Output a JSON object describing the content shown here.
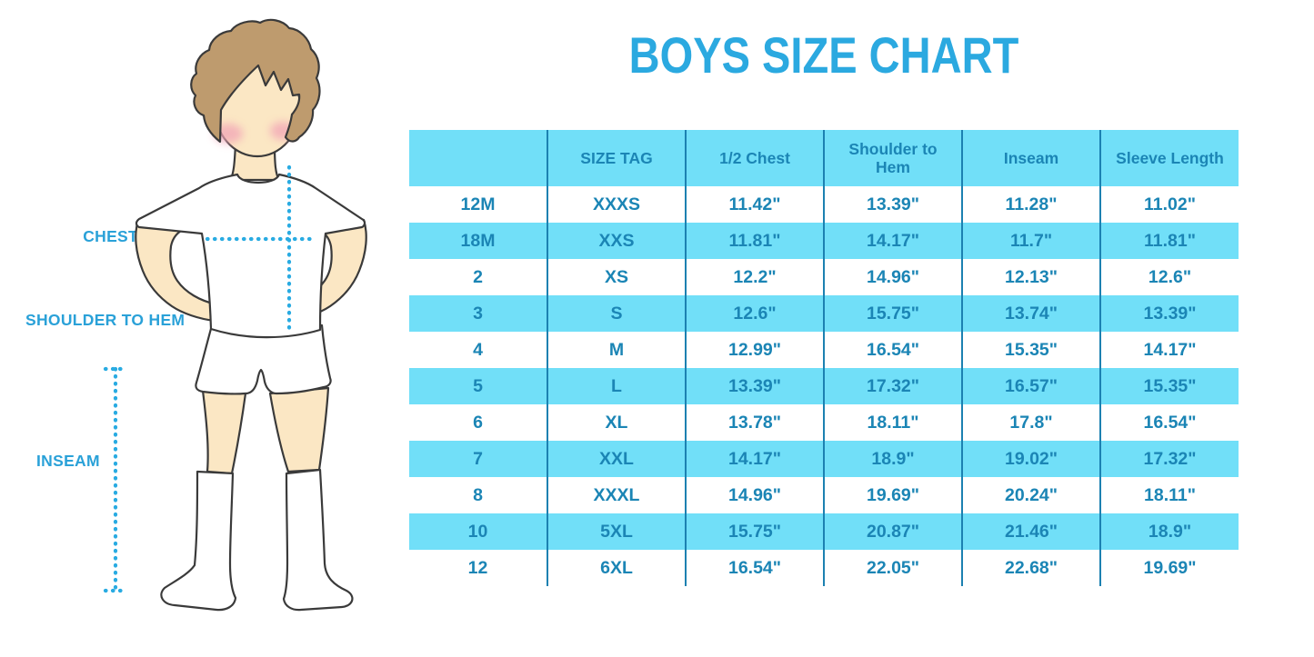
{
  "title": "BOYS SIZE CHART",
  "figure": {
    "description": "boy-in-tshirt-shorts-and-knee-socks-measurement-diagram",
    "labels": {
      "chest": "CHEST",
      "shoulder_to_hem": "SHOULDER TO HEM",
      "inseam": "INSEAM"
    }
  },
  "chart_data": {
    "type": "table",
    "title": "BOYS SIZE CHART",
    "columns": [
      "",
      "SIZE TAG",
      "1/2 Chest",
      "Shoulder to Hem",
      "Inseam",
      "Sleeve Length"
    ],
    "rows": [
      [
        "12M",
        "XXXS",
        "11.42\"",
        "13.39\"",
        "11.28\"",
        "11.02\""
      ],
      [
        "18M",
        "XXS",
        "11.81\"",
        "14.17\"",
        "11.7\"",
        "11.81\""
      ],
      [
        "2",
        "XS",
        "12.2\"",
        "14.96\"",
        "12.13\"",
        "12.6\""
      ],
      [
        "3",
        "S",
        "12.6\"",
        "15.75\"",
        "13.74\"",
        "13.39\""
      ],
      [
        "4",
        "M",
        "12.99\"",
        "16.54\"",
        "15.35\"",
        "14.17\""
      ],
      [
        "5",
        "L",
        "13.39\"",
        "17.32\"",
        "16.57\"",
        "15.35\""
      ],
      [
        "6",
        "XL",
        "13.78\"",
        "18.11\"",
        "17.8\"",
        "16.54\""
      ],
      [
        "7",
        "XXL",
        "14.17\"",
        "18.9\"",
        "19.02\"",
        "17.32\""
      ],
      [
        "8",
        "XXXL",
        "14.96\"",
        "19.69\"",
        "20.24\"",
        "18.11\""
      ],
      [
        "10",
        "5XL",
        "15.75\"",
        "20.87\"",
        "21.46\"",
        "18.9\""
      ],
      [
        "12",
        "6XL",
        "16.54\"",
        "22.05\"",
        "22.68\"",
        "19.69\""
      ]
    ],
    "layout": {
      "row_striping": "white and cyan alternating, header cyan",
      "borders": "vertical column dividers only"
    }
  },
  "colors": {
    "title_blue": "#2BA9E0",
    "label_blue": "#2AA1D8",
    "dotted_line": "#29ABE2",
    "row_cyan": "#71DFF8",
    "table_ink": "#1B85B5",
    "divider": "#1C81B1",
    "skin": "#FBE7C4",
    "hair": "#BE9B6E",
    "blush": "#F2A4B6",
    "outline": "#3A3A3A"
  }
}
